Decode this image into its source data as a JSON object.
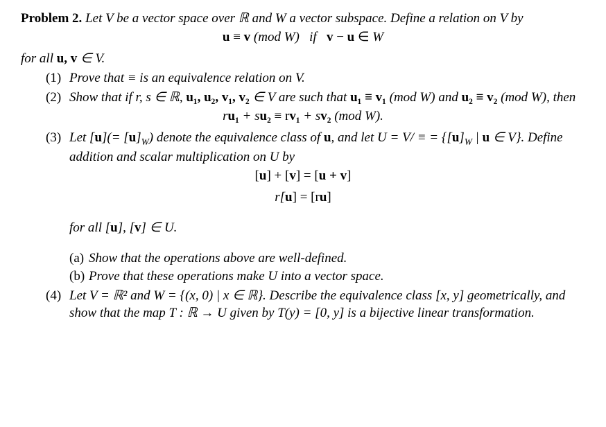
{
  "problem_label": "Problem 2.",
  "intro_1": "Let V be a vector space over ℝ and W a vector subspace. Define a relation on V by",
  "eq1": "u ≡ v (mod W)  if  v − u ∈ W",
  "intro_2a": "for all ",
  "intro_2b": "u, v",
  "intro_2c": " ∈ V.",
  "item1_marker": "(1)",
  "item1_text": "Prove that ≡ is an equivalence relation on V.",
  "item2_marker": "(2)",
  "item2_text_a": "Show that if r, s ∈ ℝ, ",
  "item2_text_b": "u₁, u₂, v₁, v₂",
  "item2_text_c": " ∈ V are such that ",
  "item2_text_d": "u₁ ≡ v₁",
  "item2_text_e": " (mod W) and ",
  "item2_text_f": "u₂ ≡ v₂",
  "item2_text_g": " (mod W), then",
  "item2_eq_a": "r",
  "item2_eq_b": "u₁",
  "item2_eq_c": " + s",
  "item2_eq_d": "u₂",
  "item2_eq_e": " ≡ r",
  "item2_eq_f": "v₁",
  "item2_eq_g": " + s",
  "item2_eq_h": "v₂",
  "item2_eq_i": " (mod W).",
  "item3_marker": "(3)",
  "item3_text_a": "Let [",
  "item3_text_b": "u",
  "item3_text_c": "](= [",
  "item3_text_d": "u",
  "item3_text_e": "]",
  "item3_text_e2": "W",
  "item3_text_f": ") denote the equivalence class of ",
  "item3_text_g": "u",
  "item3_text_h": ", and let U = V/ ≡ = {[",
  "item3_text_i": "u",
  "item3_text_j": "]",
  "item3_text_j2": "W",
  "item3_text_k": " | ",
  "item3_text_l": "u",
  "item3_text_m": " ∈ V}. Define addition and scalar multiplication on U by",
  "item3_eq1_a": "[",
  "item3_eq1_b": "u",
  "item3_eq1_c": "] + [",
  "item3_eq1_d": "v",
  "item3_eq1_e": "] = [",
  "item3_eq1_f": "u + v",
  "item3_eq1_g": "]",
  "item3_eq2_a": "r[",
  "item3_eq2_b": "u",
  "item3_eq2_c": "] = [r",
  "item3_eq2_d": "u",
  "item3_eq2_e": "]",
  "item3_after_a": "for all [",
  "item3_after_b": "u",
  "item3_after_c": "], [",
  "item3_after_d": "v",
  "item3_after_e": "] ∈ U.",
  "item3a_marker": "(a)",
  "item3a_text": "Show that the operations above are well-defined.",
  "item3b_marker": "(b)",
  "item3b_text": "Prove that these operations make U into a vector space.",
  "item4_marker": "(4)",
  "item4_text": "Let V = ℝ² and W = {(x, 0) | x ∈ ℝ}. Describe the equivalence class [x, y] geometrically, and show that the map T : ℝ → U given by T(y) = [0, y] is a bijective linear transformation."
}
